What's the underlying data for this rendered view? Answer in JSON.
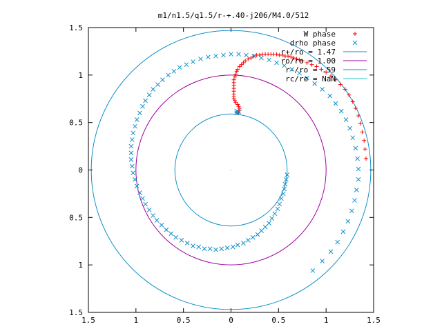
{
  "chart_data": {
    "type": "scatter",
    "title": "m1/n1.5/q1.5/r-+.40-j206/M4.0/512",
    "xlabel": "",
    "ylabel": "",
    "xlim": [
      -1.5,
      1.5
    ],
    "ylim": [
      -1.5,
      1.5
    ],
    "x_tick_values": [
      -1.5,
      -1,
      -0.5,
      0,
      0.5,
      1,
      1.5
    ],
    "x_tick_labels": [
      "1.5",
      "1",
      "0.5",
      "0",
      "0.5",
      "1",
      "1.5"
    ],
    "y_tick_values": [
      1.5,
      1,
      0.5,
      0,
      -0.5,
      -1,
      -1.5
    ],
    "y_tick_labels": [
      "1.5",
      "1",
      "0.5",
      "0",
      "0.5",
      "1",
      "1.5"
    ],
    "grid": false,
    "legend_position": "top-right",
    "series": [
      {
        "name": "W phase",
        "marker": "plus",
        "color": "#ff0000",
        "points": [
          [
            0.07,
            0.6
          ],
          [
            0.08,
            0.61
          ],
          [
            0.09,
            0.63
          ],
          [
            0.09,
            0.65
          ],
          [
            0.08,
            0.67
          ],
          [
            0.07,
            0.69
          ],
          [
            0.05,
            0.71
          ],
          [
            0.04,
            0.73
          ],
          [
            0.03,
            0.75
          ],
          [
            0.03,
            0.77
          ],
          [
            0.03,
            0.8
          ],
          [
            0.03,
            0.83
          ],
          [
            0.03,
            0.86
          ],
          [
            0.03,
            0.89
          ],
          [
            0.03,
            0.92
          ],
          [
            0.03,
            0.95
          ],
          [
            0.04,
            0.98
          ],
          [
            0.05,
            1.01
          ],
          [
            0.06,
            1.04
          ],
          [
            0.07,
            1.06
          ],
          [
            0.09,
            1.09
          ],
          [
            0.11,
            1.11
          ],
          [
            0.13,
            1.13
          ],
          [
            0.15,
            1.15
          ],
          [
            0.18,
            1.17
          ],
          [
            0.21,
            1.18
          ],
          [
            0.24,
            1.2
          ],
          [
            0.27,
            1.21
          ],
          [
            0.3,
            1.21
          ],
          [
            0.33,
            1.22
          ],
          [
            0.36,
            1.22
          ],
          [
            0.39,
            1.22
          ],
          [
            0.42,
            1.22
          ],
          [
            0.45,
            1.22
          ],
          [
            0.48,
            1.22
          ],
          [
            0.51,
            1.21
          ],
          [
            0.54,
            1.21
          ],
          [
            0.57,
            1.2
          ],
          [
            0.6,
            1.2
          ],
          [
            0.63,
            1.19
          ],
          [
            0.66,
            1.18
          ],
          [
            0.69,
            1.17
          ],
          [
            0.72,
            1.16
          ],
          [
            0.75,
            1.15
          ],
          [
            0.8,
            1.13
          ],
          [
            0.85,
            1.11
          ],
          [
            0.9,
            1.09
          ],
          [
            0.95,
            1.06
          ],
          [
            1.0,
            1.03
          ],
          [
            1.05,
            0.99
          ],
          [
            1.1,
            0.95
          ],
          [
            1.15,
            0.9
          ],
          [
            1.2,
            0.85
          ],
          [
            1.24,
            0.79
          ],
          [
            1.28,
            0.72
          ],
          [
            1.31,
            0.65
          ],
          [
            1.34,
            0.57
          ],
          [
            1.36,
            0.49
          ],
          [
            1.38,
            0.4
          ],
          [
            1.4,
            0.31
          ],
          [
            1.41,
            0.22
          ],
          [
            1.42,
            0.12
          ]
        ]
      },
      {
        "name": "drho phase",
        "marker": "cross",
        "color": "#0e8fc8",
        "points": [
          [
            0.06,
            0.6
          ],
          [
            0.08,
            0.61
          ],
          [
            0.06,
            0.62
          ],
          [
            0.59,
            -0.05
          ],
          [
            0.58,
            -0.1
          ],
          [
            0.57,
            -0.15
          ],
          [
            0.56,
            -0.2
          ],
          [
            0.55,
            -0.25
          ],
          [
            0.53,
            -0.3
          ],
          [
            0.51,
            -0.36
          ],
          [
            0.49,
            -0.41
          ],
          [
            0.46,
            -0.46
          ],
          [
            0.43,
            -0.51
          ],
          [
            0.4,
            -0.56
          ],
          [
            0.36,
            -0.6
          ],
          [
            0.32,
            -0.64
          ],
          [
            0.28,
            -0.68
          ],
          [
            0.23,
            -0.71
          ],
          [
            0.18,
            -0.74
          ],
          [
            0.13,
            -0.77
          ],
          [
            0.07,
            -0.79
          ],
          [
            0.02,
            -0.81
          ],
          [
            -0.04,
            -0.82
          ],
          [
            -0.1,
            -0.83
          ],
          [
            -0.16,
            -0.84
          ],
          [
            -0.22,
            -0.83
          ],
          [
            -0.28,
            -0.83
          ],
          [
            -0.34,
            -0.81
          ],
          [
            -0.4,
            -0.8
          ],
          [
            -0.46,
            -0.77
          ],
          [
            -0.52,
            -0.74
          ],
          [
            -0.58,
            -0.71
          ],
          [
            -0.63,
            -0.67
          ],
          [
            -0.68,
            -0.63
          ],
          [
            -0.73,
            -0.58
          ],
          [
            -0.78,
            -0.53
          ],
          [
            -0.82,
            -0.48
          ],
          [
            -0.86,
            -0.42
          ],
          [
            -0.9,
            -0.36
          ],
          [
            -0.93,
            -0.3
          ],
          [
            -0.96,
            -0.24
          ],
          [
            -0.99,
            -0.17
          ],
          [
            -1.01,
            -0.1
          ],
          [
            -1.03,
            -0.03
          ],
          [
            -1.04,
            0.04
          ],
          [
            -1.05,
            0.11
          ],
          [
            -1.05,
            0.18
          ],
          [
            -1.05,
            0.25
          ],
          [
            -1.04,
            0.32
          ],
          [
            -1.03,
            0.39
          ],
          [
            -1.01,
            0.46
          ],
          [
            -0.99,
            0.53
          ],
          [
            -0.96,
            0.6
          ],
          [
            -0.93,
            0.67
          ],
          [
            -0.9,
            0.73
          ],
          [
            -0.86,
            0.79
          ],
          [
            -0.82,
            0.85
          ],
          [
            -0.77,
            0.9
          ],
          [
            -0.72,
            0.95
          ],
          [
            -0.66,
            1.0
          ],
          [
            -0.6,
            1.04
          ],
          [
            -0.54,
            1.08
          ],
          [
            -0.47,
            1.11
          ],
          [
            -0.4,
            1.14
          ],
          [
            -0.32,
            1.17
          ],
          [
            -0.24,
            1.19
          ],
          [
            -0.16,
            1.2
          ],
          [
            -0.08,
            1.21
          ],
          [
            0.0,
            1.22
          ],
          [
            0.08,
            1.22
          ],
          [
            0.16,
            1.21
          ],
          [
            0.24,
            1.2
          ],
          [
            0.32,
            1.18
          ],
          [
            0.4,
            1.16
          ],
          [
            0.48,
            1.13
          ],
          [
            0.56,
            1.1
          ],
          [
            0.64,
            1.06
          ],
          [
            0.72,
            1.02
          ],
          [
            0.8,
            0.97
          ],
          [
            0.88,
            0.91
          ],
          [
            0.96,
            0.85
          ],
          [
            1.04,
            0.78
          ],
          [
            1.1,
            0.7
          ],
          [
            1.16,
            0.62
          ],
          [
            1.21,
            0.53
          ],
          [
            1.25,
            0.44
          ],
          [
            1.28,
            0.34
          ],
          [
            1.31,
            0.23
          ],
          [
            1.33,
            0.12
          ],
          [
            1.34,
            0.01
          ],
          [
            1.34,
            -0.1
          ],
          [
            1.32,
            -0.21
          ],
          [
            1.3,
            -0.32
          ],
          [
            1.27,
            -0.43
          ],
          [
            1.23,
            -0.54
          ],
          [
            1.18,
            -0.65
          ],
          [
            1.12,
            -0.76
          ],
          [
            1.05,
            -0.86
          ],
          [
            0.96,
            -0.96
          ],
          [
            0.86,
            -1.06
          ]
        ]
      },
      {
        "name": "r+/ro = 1.47",
        "type": "circle",
        "radius": 1.47,
        "color": "#0e8fc8"
      },
      {
        "name": "ro/ro = 1.00",
        "type": "circle",
        "radius": 1.0,
        "color": "#a000a0"
      },
      {
        "name": "r-/ro = .59",
        "type": "circle",
        "radius": 0.59,
        "color": "#0e8fc8"
      },
      {
        "name": "rc/ro = NaN",
        "type": "circle",
        "radius": null,
        "color": "#20c0c0"
      }
    ]
  }
}
